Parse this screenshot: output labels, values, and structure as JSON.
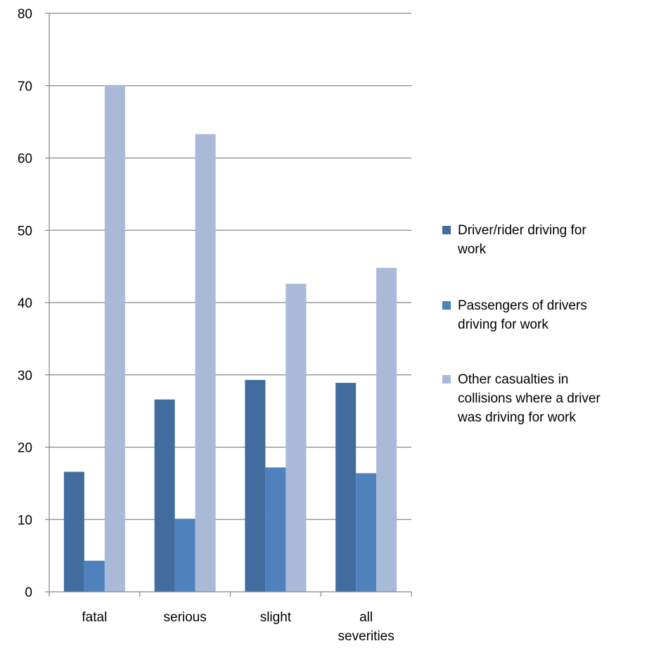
{
  "chart_data": {
    "type": "bar",
    "title": "",
    "xlabel": "",
    "ylabel": "",
    "categories": [
      [
        "fatal"
      ],
      [
        "serious"
      ],
      [
        "slight"
      ],
      [
        "all",
        "severities"
      ]
    ],
    "series": [
      {
        "name": [
          "Driver/rider driving for",
          "work"
        ],
        "color": "#416d9e",
        "values": [
          16.6,
          26.6,
          29.3,
          28.9
        ]
      },
      {
        "name": [
          "Passengers of drivers",
          "driving for work"
        ],
        "color": "#4f81bd",
        "values": [
          4.3,
          10.1,
          17.2,
          16.4
        ]
      },
      {
        "name": [
          "Other  casualties in",
          "collisions where a driver",
          "was driving for work"
        ],
        "color": "#a9b9d8",
        "values": [
          70.1,
          63.3,
          42.6,
          44.8
        ]
      }
    ],
    "ylim": [
      0,
      80
    ],
    "yticks": [
      0,
      10,
      20,
      30,
      40,
      50,
      60,
      70,
      80
    ],
    "grid": true,
    "legend_position": "right"
  }
}
